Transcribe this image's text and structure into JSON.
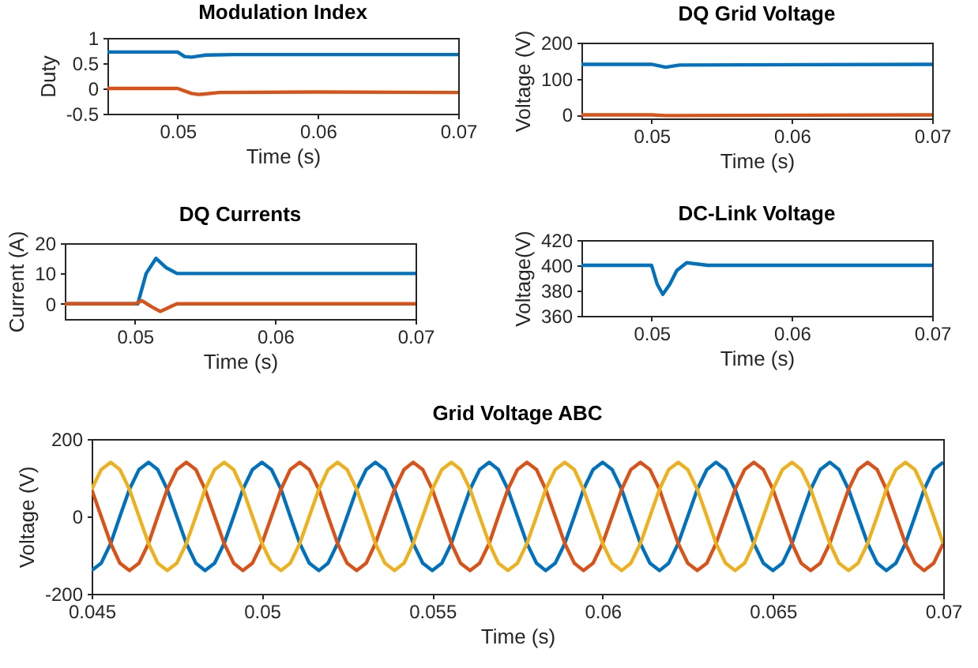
{
  "chart_data": [
    {
      "type": "line",
      "title": "Modulation Index",
      "xlabel": "Time (s)",
      "ylabel": "Duty",
      "xlim": [
        0.045,
        0.07
      ],
      "xticks": [
        0.05,
        0.06,
        0.07
      ],
      "ylim": [
        -0.5,
        1
      ],
      "yticks": [
        -0.5,
        0,
        0.5,
        1
      ],
      "series": [
        {
          "color": "#0072bd",
          "x": [
            0.045,
            0.05,
            0.0505,
            0.051,
            0.052,
            0.054,
            0.07
          ],
          "values": [
            0.72,
            0.72,
            0.63,
            0.62,
            0.66,
            0.67,
            0.67
          ]
        },
        {
          "color": "#d95319",
          "x": [
            0.045,
            0.05,
            0.051,
            0.0515,
            0.053,
            0.06,
            0.07
          ],
          "values": [
            0,
            0,
            -0.1,
            -0.12,
            -0.08,
            -0.07,
            -0.08
          ]
        }
      ]
    },
    {
      "type": "line",
      "title": "DQ Grid Voltage",
      "xlabel": "Time (s)",
      "ylabel": "Voltage (V)",
      "xlim": [
        0.045,
        0.07
      ],
      "xticks": [
        0.05,
        0.06,
        0.07
      ],
      "ylim": [
        -10,
        200
      ],
      "yticks": [
        0,
        100,
        200
      ],
      "series": [
        {
          "color": "#0072bd",
          "x": [
            0.045,
            0.05,
            0.051,
            0.052,
            0.07
          ],
          "values": [
            140,
            140,
            132,
            138,
            140
          ]
        },
        {
          "color": "#d95319",
          "x": [
            0.045,
            0.05,
            0.051,
            0.07
          ],
          "values": [
            0,
            0,
            -2,
            0
          ]
        }
      ]
    },
    {
      "type": "line",
      "title": "DQ Currents",
      "xlabel": "Time (s)",
      "ylabel": "Current (A)",
      "xlim": [
        0.045,
        0.07
      ],
      "xticks": [
        0.05,
        0.06,
        0.07
      ],
      "ylim": [
        -5,
        20
      ],
      "yticks": [
        0,
        10,
        20
      ],
      "series": [
        {
          "color": "#0072bd",
          "x": [
            0.045,
            0.0502,
            0.0508,
            0.0515,
            0.0522,
            0.053,
            0.054,
            0.07
          ],
          "values": [
            0,
            0,
            10,
            15,
            12,
            10,
            10,
            10
          ]
        },
        {
          "color": "#d95319",
          "x": [
            0.045,
            0.05,
            0.0505,
            0.0512,
            0.0518,
            0.0525,
            0.053,
            0.07
          ],
          "values": [
            0,
            0,
            1,
            -1,
            -2.5,
            -1,
            0,
            0
          ]
        }
      ]
    },
    {
      "type": "line",
      "title": "DC-Link Voltage",
      "xlabel": "Time (s)",
      "ylabel": "Voltage(V)",
      "xlim": [
        0.045,
        0.07
      ],
      "xticks": [
        0.05,
        0.06,
        0.07
      ],
      "ylim": [
        360,
        420
      ],
      "yticks": [
        360,
        380,
        400,
        420
      ],
      "series": [
        {
          "color": "#0072bd",
          "x": [
            0.045,
            0.05,
            0.0504,
            0.0508,
            0.0513,
            0.0518,
            0.0525,
            0.054,
            0.07
          ],
          "values": [
            400,
            400,
            385,
            377,
            385,
            396,
            402,
            400,
            400
          ]
        }
      ]
    },
    {
      "type": "line",
      "title": "Grid Voltage ABC",
      "xlabel": "Time (s)",
      "ylabel": "Voltage (V)",
      "xlim": [
        0.045,
        0.07
      ],
      "xticks": [
        0.045,
        0.05,
        0.055,
        0.06,
        0.065,
        0.07
      ],
      "ylim": [
        -200,
        200
      ],
      "yticks": [
        -200,
        0,
        200
      ],
      "x": [
        0.045,
        0.04528,
        0.04556,
        0.04583,
        0.04611,
        0.04639,
        0.04667,
        0.04694,
        0.04722,
        0.0475,
        0.04778,
        0.04806,
        0.04833,
        0.04861,
        0.04889,
        0.04917,
        0.04944,
        0.04972,
        0.05,
        0.05028,
        0.05056,
        0.05083,
        0.05111,
        0.05139,
        0.05167,
        0.05194,
        0.05222,
        0.0525,
        0.05278,
        0.05306,
        0.05333,
        0.05361,
        0.05389,
        0.05417,
        0.05444,
        0.05472,
        0.055,
        0.05528,
        0.05556,
        0.05583,
        0.05611,
        0.05639,
        0.05667,
        0.05694,
        0.05722,
        0.0575,
        0.05778,
        0.05806,
        0.05833,
        0.05861,
        0.05889,
        0.05917,
        0.05944,
        0.05972,
        0.06,
        0.06028,
        0.06056,
        0.06083,
        0.06111,
        0.06139,
        0.06167,
        0.06194,
        0.06222,
        0.0625,
        0.06278,
        0.06306,
        0.06333,
        0.06361,
        0.06389,
        0.06417,
        0.06444,
        0.06472,
        0.065,
        0.06528,
        0.06556,
        0.06583,
        0.06611,
        0.06639,
        0.06667,
        0.06694,
        0.06722,
        0.0675,
        0.06778,
        0.06806,
        0.06833,
        0.06861,
        0.06889,
        0.06917,
        0.06944,
        0.06972,
        0.07
      ],
      "series": [
        {
          "color": "#0072bd",
          "values": [
            -140,
            -121,
            -70,
            0,
            70,
            121,
            140,
            121,
            70,
            0,
            -70,
            -121,
            -140,
            -121,
            -70,
            0,
            70,
            121,
            140,
            121,
            70,
            0,
            -70,
            -121,
            -140,
            -121,
            -70,
            0,
            70,
            121,
            140,
            121,
            70,
            0,
            -70,
            -121,
            -140,
            -121,
            -70,
            0,
            70,
            121,
            140,
            121,
            70,
            0,
            -70,
            -121,
            -140,
            -121,
            -70,
            0,
            70,
            121,
            140,
            121,
            70,
            0,
            -70,
            -121,
            -140,
            -121,
            -70,
            0,
            70,
            121,
            140,
            121,
            70,
            0,
            -70,
            -121,
            -140,
            -121,
            -70,
            0,
            70,
            121,
            140,
            121,
            70,
            0,
            -70,
            -121,
            -140,
            -121,
            -70,
            0,
            70,
            121,
            140
          ]
        },
        {
          "color": "#d95319",
          "values": [
            70,
            0,
            -70,
            -121,
            -140,
            -121,
            -70,
            0,
            70,
            121,
            140,
            121,
            70,
            0,
            -70,
            -121,
            -140,
            -121,
            -70,
            0,
            70,
            121,
            140,
            121,
            70,
            0,
            -70,
            -121,
            -140,
            -121,
            -70,
            0,
            70,
            121,
            140,
            121,
            70,
            0,
            -70,
            -121,
            -140,
            -121,
            -70,
            0,
            70,
            121,
            140,
            121,
            70,
            0,
            -70,
            -121,
            -140,
            -121,
            -70,
            0,
            70,
            121,
            140,
            121,
            70,
            0,
            -70,
            -121,
            -140,
            -121,
            -70,
            0,
            70,
            121,
            140,
            121,
            70,
            0,
            -70,
            -121,
            -140,
            -121,
            -70,
            0,
            70,
            121,
            140,
            121,
            70,
            0,
            -70,
            -121,
            -140,
            -121,
            -70
          ]
        },
        {
          "color": "#edb120",
          "values": [
            70,
            121,
            140,
            121,
            70,
            0,
            -70,
            -121,
            -140,
            -121,
            -70,
            0,
            70,
            121,
            140,
            121,
            70,
            0,
            -70,
            -121,
            -140,
            -121,
            -70,
            0,
            70,
            121,
            140,
            121,
            70,
            0,
            -70,
            -121,
            -140,
            -121,
            -70,
            0,
            70,
            121,
            140,
            121,
            70,
            0,
            -70,
            -121,
            -140,
            -121,
            -70,
            0,
            70,
            121,
            140,
            121,
            70,
            0,
            -70,
            -121,
            -140,
            -121,
            -70,
            0,
            70,
            121,
            140,
            121,
            70,
            0,
            -70,
            -121,
            -140,
            -121,
            -70,
            0,
            70,
            121,
            140,
            121,
            70,
            0,
            -70,
            -121,
            -140,
            -121,
            -70,
            0,
            70,
            121,
            140,
            121,
            70,
            0,
            -70
          ]
        }
      ]
    }
  ]
}
